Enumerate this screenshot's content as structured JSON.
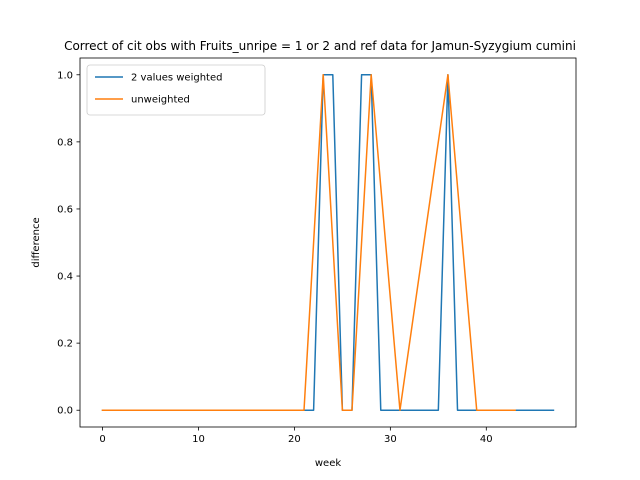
{
  "chart_data": {
    "type": "line",
    "title": "Correct of cit obs with Fruits_unripe = 1 or 2 and ref data for Jamun-Syzygium cumini",
    "xlabel": "week",
    "ylabel": "difference",
    "xlim": [
      -2.35,
      49.35
    ],
    "ylim": [
      -0.05,
      1.05
    ],
    "xticks": [
      0,
      10,
      20,
      30,
      40
    ],
    "yticks": [
      0.0,
      0.2,
      0.4,
      0.6,
      0.8,
      1.0
    ],
    "xtick_labels": [
      "0",
      "10",
      "20",
      "30",
      "40"
    ],
    "ytick_labels": [
      "0.0",
      "0.2",
      "0.4",
      "0.6",
      "0.8",
      "1.0"
    ],
    "legend_position": "upper-left",
    "grid": false,
    "series": [
      {
        "name": "2 values weighted",
        "color": "#1f77b4",
        "x": [
          0,
          22,
          23,
          24,
          25,
          26,
          27,
          28,
          29,
          35,
          36,
          37,
          47
        ],
        "y": [
          0,
          0,
          1,
          1,
          0,
          0,
          1,
          1,
          0,
          0,
          1,
          0,
          0
        ]
      },
      {
        "name": "unweighted",
        "color": "#ff7f0e",
        "x": [
          0,
          21,
          23,
          25,
          26,
          28,
          31,
          36,
          39,
          43
        ],
        "y": [
          0,
          0,
          1,
          0,
          0,
          1,
          0,
          1,
          0,
          0
        ]
      }
    ]
  }
}
